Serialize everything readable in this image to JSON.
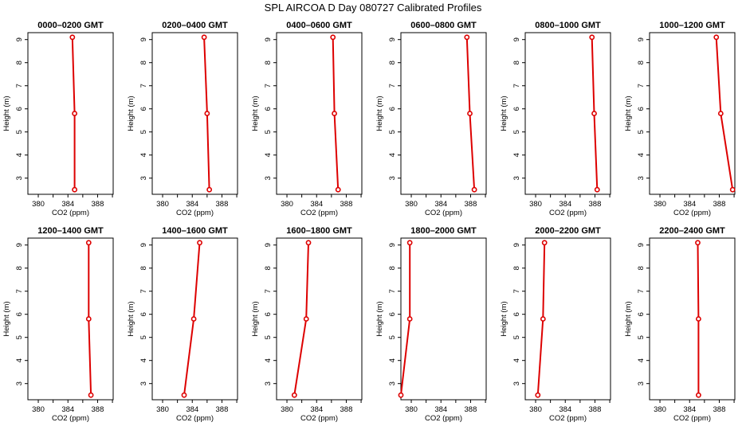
{
  "title": "SPL AIRCOA D  Day 080727  Calibrated Profiles",
  "chart_data": {
    "type": "line",
    "title": "SPL AIRCOA D  Day 080727  Calibrated Profiles",
    "xlabel": "CO2 (ppm)",
    "ylabel": "Height (m)",
    "xlim": [
      378.6,
      390.1
    ],
    "ylim": [
      2.3,
      9.3
    ],
    "x_ticks": [
      "380",
      "384",
      "388"
    ],
    "y_ticks": [
      "3",
      "4",
      "5",
      "6",
      "7",
      "8",
      "9"
    ],
    "heights": [
      9.1,
      5.8,
      2.5
    ],
    "grid": false,
    "panels": [
      {
        "title": "0000–0200 GMT",
        "x": [
          384.6,
          384.9,
          384.9
        ]
      },
      {
        "title": "0200–0400 GMT",
        "x": [
          385.6,
          386.0,
          386.3
        ]
      },
      {
        "title": "0400–0600 GMT",
        "x": [
          386.2,
          386.4,
          386.9
        ]
      },
      {
        "title": "0600–0800 GMT",
        "x": [
          387.5,
          387.9,
          388.5
        ]
      },
      {
        "title": "0800–1000 GMT",
        "x": [
          387.6,
          387.9,
          388.3
        ]
      },
      {
        "title": "1000–1200 GMT",
        "x": [
          387.6,
          388.2,
          389.8
        ]
      },
      {
        "title": "1200–1400 GMT",
        "x": [
          386.8,
          386.8,
          387.1
        ]
      },
      {
        "title": "1400–1600 GMT",
        "x": [
          385.0,
          384.2,
          382.9
        ]
      },
      {
        "title": "1600–1800 GMT",
        "x": [
          382.9,
          382.6,
          381.0
        ]
      },
      {
        "title": "1800–2000 GMT",
        "x": [
          379.8,
          379.8,
          378.6
        ]
      },
      {
        "title": "2000–2200 GMT",
        "x": [
          381.2,
          381.0,
          380.3
        ]
      },
      {
        "title": "2200–2400 GMT",
        "x": [
          385.1,
          385.2,
          385.2
        ]
      }
    ]
  }
}
